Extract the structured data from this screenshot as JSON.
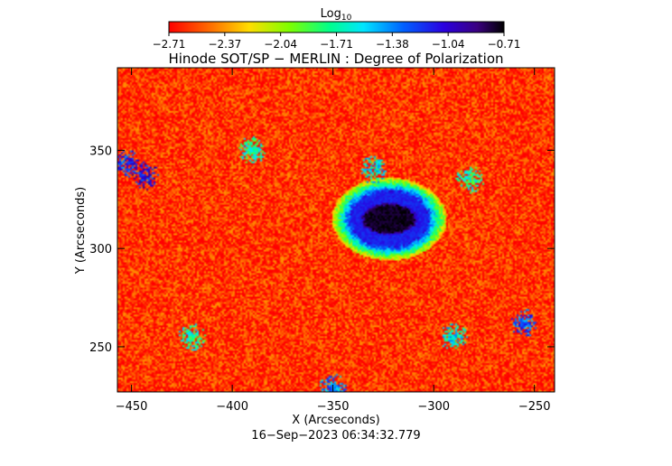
{
  "chart_data": {
    "type": "heatmap",
    "title": "Hinode SOT/SP − MERLIN : Degree of Polarization",
    "xlabel": "X (Arcseconds)",
    "ylabel": "Y (Arcseconds)",
    "xlim": [
      -457,
      -240
    ],
    "ylim": [
      227,
      392
    ],
    "x_ticks": [
      -450,
      -400,
      -350,
      -300,
      -250
    ],
    "y_ticks": [
      250,
      300,
      350
    ],
    "colorbar": {
      "label": "Log",
      "label_subscript": "10",
      "range": [
        -2.71,
        -0.71
      ],
      "ticks": [
        "−2.71",
        "−2.37",
        "−2.04",
        "−1.71",
        "−1.38",
        "−1.04",
        "−0.71"
      ],
      "colormap": "rainbow"
    },
    "footer": "16−Sep−2023 06:34:32.779",
    "background_value": -2.6,
    "features": [
      {
        "kind": "sunspot_umbra",
        "x": -322,
        "y": 315,
        "rx": 12,
        "ry": 7,
        "value": -0.75
      },
      {
        "kind": "sunspot_penumbra",
        "x": -322,
        "y": 315,
        "rx": 19,
        "ry": 14,
        "value": -1.15
      },
      {
        "kind": "plage",
        "x": -452,
        "y": 343,
        "value": -1.2
      },
      {
        "kind": "plage",
        "x": -443,
        "y": 337,
        "value": -1.1
      },
      {
        "kind": "plage",
        "x": -290,
        "y": 255,
        "value": -1.6
      },
      {
        "kind": "plage",
        "x": -255,
        "y": 262,
        "value": -1.3
      },
      {
        "kind": "plage",
        "x": -350,
        "y": 229,
        "value": -1.4
      },
      {
        "kind": "plage",
        "x": -330,
        "y": 340,
        "value": -1.6
      },
      {
        "kind": "plage",
        "x": -390,
        "y": 350,
        "value": -1.7
      },
      {
        "kind": "plage",
        "x": -420,
        "y": 255,
        "value": -1.7
      },
      {
        "kind": "plage",
        "x": -282,
        "y": 335,
        "value": -1.7
      }
    ]
  }
}
